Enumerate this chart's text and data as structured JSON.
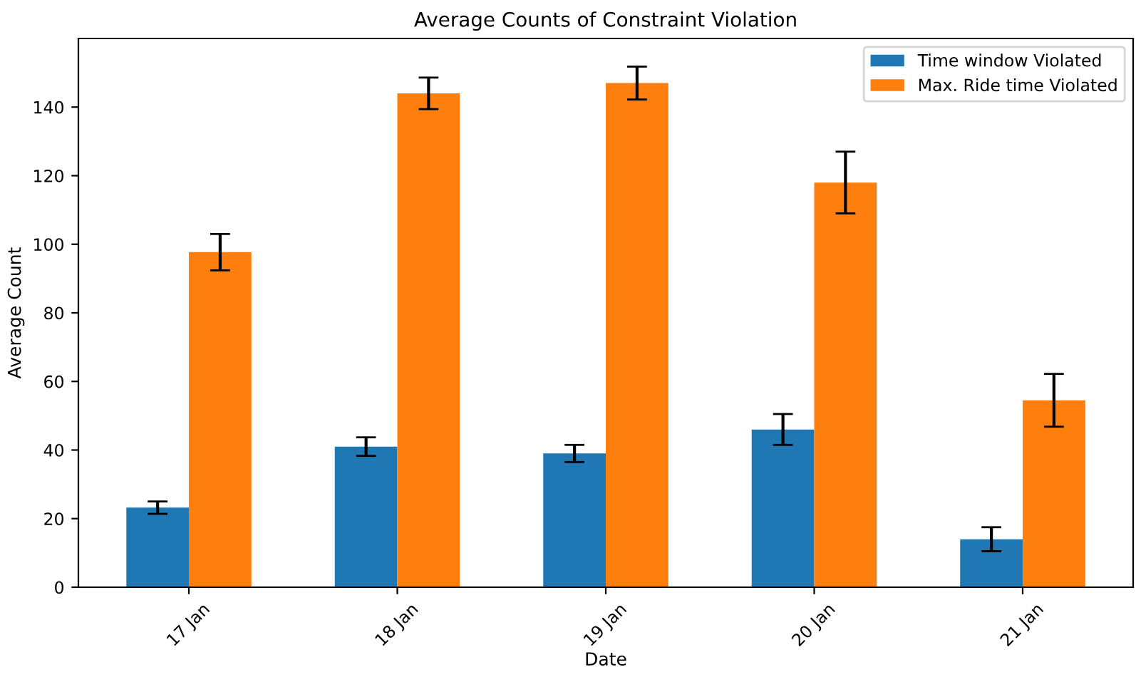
{
  "chart_data": {
    "type": "bar",
    "title": "Average Counts of Constraint Violation",
    "xlabel": "Date",
    "ylabel": "Average Count",
    "categories": [
      "17 Jan",
      "18 Jan",
      "19 Jan",
      "20 Jan",
      "21 Jan"
    ],
    "series": [
      {
        "name": "Time window Violated",
        "color": "#1f77b4",
        "values": [
          23.2,
          41,
          39,
          46,
          14
        ],
        "errors": [
          1.8,
          2.7,
          2.5,
          4.5,
          3.5
        ]
      },
      {
        "name": "Max. Ride time Violated",
        "color": "#ff7f0e",
        "values": [
          97.7,
          144,
          147,
          118,
          54.5
        ],
        "errors": [
          5.3,
          4.6,
          4.8,
          9,
          7.7
        ]
      }
    ],
    "ylim": [
      0,
      160
    ],
    "yticks": [
      0,
      20,
      40,
      60,
      80,
      100,
      120,
      140
    ],
    "grid": false,
    "legend": "top right"
  }
}
